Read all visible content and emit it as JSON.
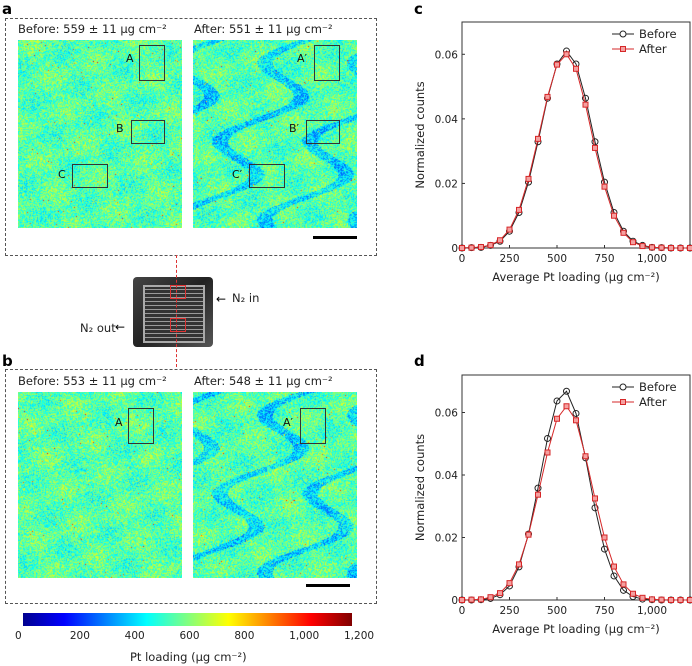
{
  "panels": {
    "a": "a",
    "b": "b",
    "c": "c",
    "d": "d"
  },
  "panel_a": {
    "before_caption": "Before: 559 ± 11 µg cm⁻²",
    "after_caption": "After: 551 ± 11 µg cm⁻²",
    "regions_before": [
      "A",
      "B",
      "C"
    ],
    "regions_after": [
      "A′",
      "B′",
      "C′"
    ]
  },
  "panel_b": {
    "before_caption": "Before: 553 ± 11 µg cm⁻²",
    "after_caption": "After: 548 ± 11 µg cm⁻²",
    "regions_before": [
      "A"
    ],
    "regions_after": [
      "A′"
    ]
  },
  "chip": {
    "n2_in": "N₂ in",
    "n2_out": "N₂ out"
  },
  "colorbar": {
    "label": "Pt loading (µg cm⁻²)",
    "ticks": [
      "0",
      "200",
      "400",
      "600",
      "800",
      "1,000",
      "1,200"
    ],
    "colors": [
      "#00008f",
      "#0000ff",
      "#0080ff",
      "#00ffff",
      "#80ff80",
      "#ffff00",
      "#ff8000",
      "#ff0000",
      "#800000"
    ]
  },
  "chart_data": [
    {
      "id": "c",
      "type": "line",
      "xlabel": "Average Pt loading (µg cm⁻²)",
      "ylabel": "Normalized counts",
      "xlim": [
        0,
        1200
      ],
      "ylim": [
        0,
        0.07
      ],
      "xticks": [
        "0",
        "250",
        "500",
        "750",
        "1,000"
      ],
      "yticks": [
        "0",
        "0.02",
        "0.04",
        "0.06"
      ],
      "legend": "top-right",
      "x": [
        0,
        50,
        100,
        150,
        200,
        250,
        300,
        350,
        400,
        450,
        500,
        550,
        600,
        650,
        700,
        750,
        800,
        850,
        900,
        950,
        1000,
        1050,
        1100,
        1150,
        1200
      ],
      "series": [
        {
          "name": "Before",
          "color": "#222222",
          "marker": "circle",
          "values": [
            0,
            0.0001,
            0.0002,
            0.0008,
            0.0021,
            0.0052,
            0.011,
            0.0204,
            0.0329,
            0.0464,
            0.057,
            0.061,
            0.057,
            0.0464,
            0.0329,
            0.0204,
            0.011,
            0.0052,
            0.0021,
            0.0008,
            0.0002,
            0.0001,
            0,
            0,
            0
          ]
        },
        {
          "name": "After",
          "color": "#d62728",
          "marker": "square",
          "values": [
            0,
            0.0001,
            0.0003,
            0.0009,
            0.0024,
            0.0057,
            0.0118,
            0.0214,
            0.0338,
            0.0468,
            0.0568,
            0.06,
            0.0555,
            0.0444,
            0.031,
            0.019,
            0.01,
            0.0047,
            0.0018,
            0.0006,
            0.0002,
            0.0001,
            0,
            0,
            0
          ]
        }
      ]
    },
    {
      "id": "d",
      "type": "line",
      "xlabel": "Average Pt loading (µg cm⁻²)",
      "ylabel": "Normalized counts",
      "xlim": [
        0,
        1200
      ],
      "ylim": [
        0,
        0.072
      ],
      "xticks": [
        "0",
        "250",
        "500",
        "750",
        "1,000"
      ],
      "yticks": [
        "0",
        "0.02",
        "0.04",
        "0.06"
      ],
      "legend": "top-right",
      "x": [
        0,
        50,
        100,
        150,
        200,
        250,
        300,
        350,
        400,
        450,
        500,
        550,
        600,
        650,
        700,
        750,
        800,
        850,
        900,
        950,
        1000,
        1050,
        1100,
        1150,
        1200
      ],
      "series": [
        {
          "name": "Before",
          "color": "#222222",
          "marker": "circle",
          "values": [
            0,
            0,
            0.0001,
            0.0005,
            0.0017,
            0.0045,
            0.0106,
            0.0211,
            0.0358,
            0.0517,
            0.0637,
            0.0668,
            0.0597,
            0.0455,
            0.0295,
            0.0163,
            0.0077,
            0.0031,
            0.0011,
            0.0003,
            0.0001,
            0,
            0,
            0,
            0
          ]
        },
        {
          "name": "After",
          "color": "#d62728",
          "marker": "square",
          "values": [
            0,
            0.0001,
            0.0002,
            0.0009,
            0.0022,
            0.0054,
            0.0114,
            0.0209,
            0.0337,
            0.0472,
            0.058,
            0.062,
            0.0575,
            0.046,
            0.0325,
            0.02,
            0.0107,
            0.005,
            0.002,
            0.0007,
            0.0002,
            0.0001,
            0,
            0,
            0
          ]
        }
      ]
    }
  ]
}
